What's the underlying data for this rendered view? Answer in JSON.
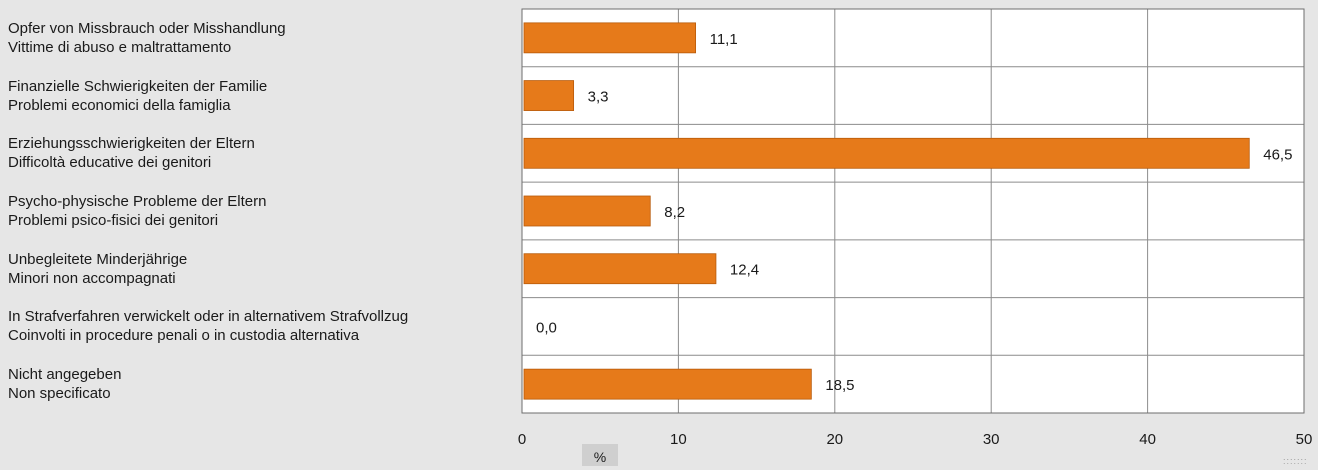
{
  "chart_data": {
    "type": "bar",
    "orientation": "horizontal",
    "categories": [
      [
        "Opfer von Missbrauch oder Misshandlung",
        "Vittime di abuso e maltrattamento"
      ],
      [
        "Finanzielle Schwierigkeiten der Familie",
        "Problemi economici della famiglia"
      ],
      [
        "Erziehungsschwierigkeiten der Eltern",
        "Difficoltà educative dei genitori"
      ],
      [
        "Psycho-physische Probleme der Eltern",
        "Problemi psico-fisici dei genitori"
      ],
      [
        "Unbegleitete Minderjährige",
        "Minori non accompagnati"
      ],
      [
        "In Strafverfahren verwickelt oder in alternativem Strafvollzug",
        "Coinvolti in procedure penali o in custodia alternativa"
      ],
      [
        "Nicht angegeben",
        "Non specificato"
      ]
    ],
    "values": [
      11.1,
      3.3,
      46.5,
      8.2,
      12.4,
      0.0,
      18.5
    ],
    "value_labels": [
      "11,1",
      "3,3",
      "46,5",
      "8,2",
      "12,4",
      "0,0",
      "18,5"
    ],
    "xlim": [
      0,
      50
    ],
    "xticks": [
      0,
      10,
      20,
      30,
      40,
      50
    ],
    "xlabel": "%",
    "grid": true,
    "bar_color": "#e67a1a",
    "plot_background": "#ffffff",
    "page_background": "#e6e6e6"
  }
}
